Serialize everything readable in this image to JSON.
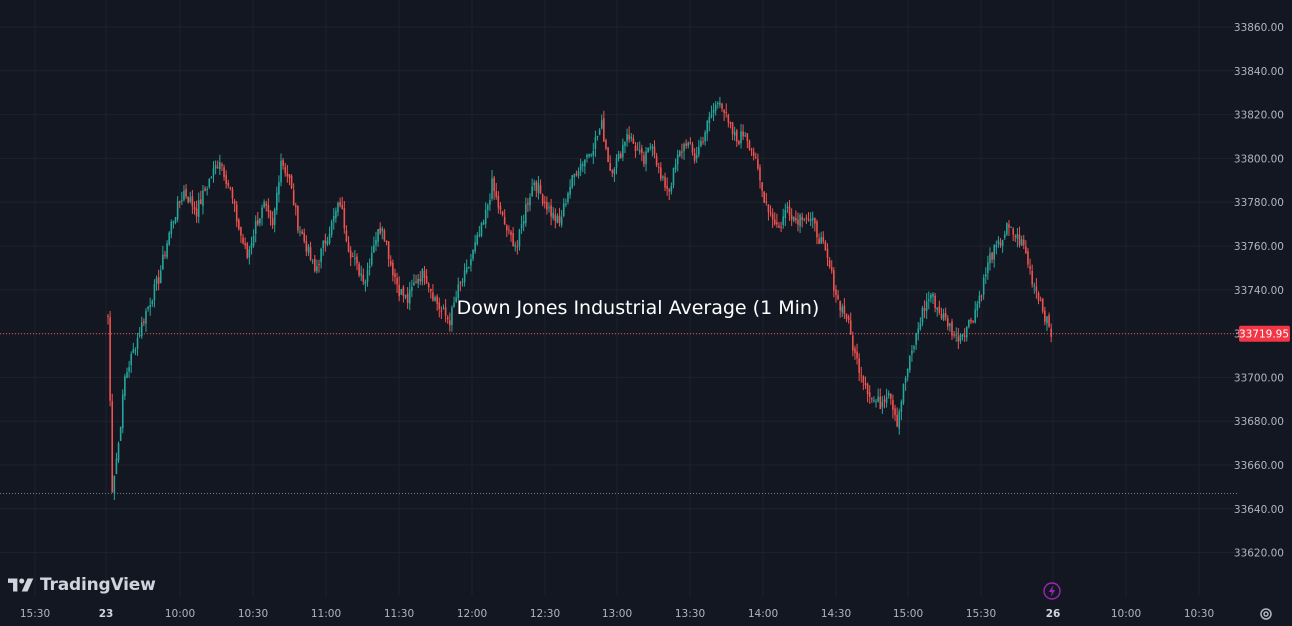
{
  "brand": {
    "name": "TradingView"
  },
  "icons": {
    "logo": "tradingview-logo-icon",
    "settings": "gear-icon",
    "alert": "lightning-icon"
  },
  "colors": {
    "background": "#131722",
    "up": "#26a69a",
    "down": "#ef5350",
    "grid": "#1e222d",
    "axis_text": "#b2b5be",
    "price_tag": "#f23645",
    "hline": "#ef5350",
    "low_line": "#787b86",
    "bolt": "#9c27b0"
  },
  "chart_data": {
    "type": "candlestick",
    "title": "Down Jones Industrial Average (1 Min)",
    "xlabel": "",
    "ylabel": "",
    "grid": true,
    "ylim": [
      33610,
      33870
    ],
    "y_ticks": [
      "33620.00",
      "33640.00",
      "33660.00",
      "33680.00",
      "33700.00",
      "33720.00",
      "33740.00",
      "33760.00",
      "33780.00",
      "33800.00",
      "33820.00",
      "33840.00",
      "33860.00"
    ],
    "x_ticks": [
      "15:30",
      "23",
      "10:00",
      "10:30",
      "11:00",
      "11:30",
      "12:00",
      "12:30",
      "13:00",
      "13:30",
      "14:00",
      "14:30",
      "15:00",
      "15:30",
      "26",
      "10:00",
      "10:30"
    ],
    "x_tick_bold": [
      "23",
      "26"
    ],
    "last_price": 33719.95,
    "last_price_label": "33719.95",
    "session_low": 33647,
    "series_close_path": [
      [
        0,
        33728
      ],
      [
        2,
        33650
      ],
      [
        5,
        33670
      ],
      [
        8,
        33700
      ],
      [
        12,
        33712
      ],
      [
        18,
        33730
      ],
      [
        24,
        33745
      ],
      [
        30,
        33770
      ],
      [
        36,
        33785
      ],
      [
        42,
        33776
      ],
      [
        48,
        33790
      ],
      [
        53,
        33800
      ],
      [
        58,
        33785
      ],
      [
        62,
        33768
      ],
      [
        66,
        33755
      ],
      [
        70,
        33770
      ],
      [
        74,
        33778
      ],
      [
        78,
        33768
      ],
      [
        82,
        33800
      ],
      [
        86,
        33790
      ],
      [
        90,
        33770
      ],
      [
        94,
        33760
      ],
      [
        98,
        33748
      ],
      [
        102,
        33760
      ],
      [
        106,
        33770
      ],
      [
        110,
        33780
      ],
      [
        114,
        33760
      ],
      [
        118,
        33750
      ],
      [
        122,
        33745
      ],
      [
        126,
        33762
      ],
      [
        130,
        33770
      ],
      [
        134,
        33752
      ],
      [
        138,
        33740
      ],
      [
        142,
        33735
      ],
      [
        146,
        33745
      ],
      [
        150,
        33748
      ],
      [
        154,
        33738
      ],
      [
        158,
        33730
      ],
      [
        162,
        33726
      ],
      [
        166,
        33740
      ],
      [
        170,
        33748
      ],
      [
        174,
        33760
      ],
      [
        178,
        33770
      ],
      [
        182,
        33788
      ],
      [
        186,
        33775
      ],
      [
        190,
        33765
      ],
      [
        194,
        33760
      ],
      [
        198,
        33778
      ],
      [
        202,
        33790
      ],
      [
        206,
        33782
      ],
      [
        210,
        33775
      ],
      [
        214,
        33770
      ],
      [
        218,
        33785
      ],
      [
        222,
        33795
      ],
      [
        226,
        33800
      ],
      [
        230,
        33806
      ],
      [
        234,
        33815
      ],
      [
        238,
        33795
      ],
      [
        242,
        33800
      ],
      [
        246,
        33812
      ],
      [
        250,
        33805
      ],
      [
        254,
        33798
      ],
      [
        258,
        33808
      ],
      [
        262,
        33790
      ],
      [
        266,
        33786
      ],
      [
        270,
        33800
      ],
      [
        274,
        33808
      ],
      [
        278,
        33800
      ],
      [
        282,
        33810
      ],
      [
        286,
        33820
      ],
      [
        290,
        33828
      ],
      [
        294,
        33815
      ],
      [
        298,
        33808
      ],
      [
        302,
        33812
      ],
      [
        306,
        33802
      ],
      [
        310,
        33785
      ],
      [
        314,
        33775
      ],
      [
        318,
        33768
      ],
      [
        322,
        33778
      ],
      [
        326,
        33772
      ],
      [
        330,
        33775
      ],
      [
        334,
        33770
      ],
      [
        338,
        33762
      ],
      [
        342,
        33750
      ],
      [
        346,
        33735
      ],
      [
        350,
        33728
      ],
      [
        354,
        33710
      ],
      [
        358,
        33700
      ],
      [
        362,
        33690
      ],
      [
        366,
        33688
      ],
      [
        370,
        33695
      ],
      [
        374,
        33680
      ],
      [
        378,
        33700
      ],
      [
        382,
        33715
      ],
      [
        386,
        33730
      ],
      [
        390,
        33738
      ],
      [
        394,
        33730
      ],
      [
        398,
        33725
      ],
      [
        402,
        33718
      ],
      [
        406,
        33722
      ],
      [
        410,
        33728
      ],
      [
        414,
        33740
      ],
      [
        418,
        33755
      ],
      [
        422,
        33760
      ],
      [
        426,
        33768
      ],
      [
        430,
        33765
      ],
      [
        434,
        33760
      ],
      [
        438,
        33745
      ],
      [
        442,
        33735
      ],
      [
        445,
        33725
      ],
      [
        447,
        33720
      ]
    ]
  }
}
